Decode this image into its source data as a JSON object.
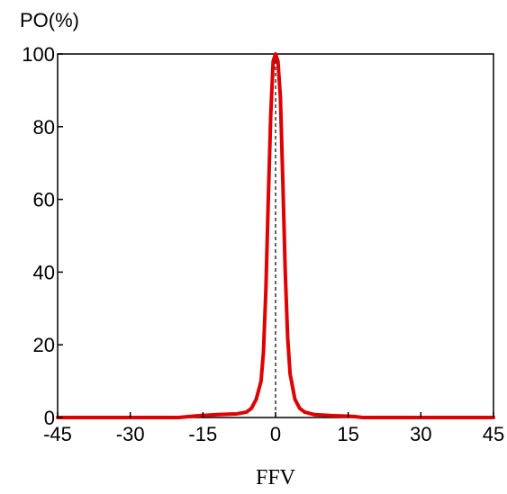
{
  "chart_data": {
    "type": "line",
    "title": "",
    "xlabel": "FFV",
    "ylabel": "PO(%)",
    "xlim": [
      -45,
      45
    ],
    "ylim": [
      0,
      100
    ],
    "xticks": [
      -45,
      -30,
      -15,
      0,
      15,
      30,
      45
    ],
    "yticks": [
      0,
      20,
      40,
      60,
      80,
      100
    ],
    "xtick_labels": [
      "-45",
      "-30",
      "-15",
      "0",
      "15",
      "30",
      "45"
    ],
    "ytick_labels": [
      "0",
      "20",
      "40",
      "60",
      "80",
      "100"
    ],
    "grid": false,
    "legend": "none",
    "colors": {
      "series": "#e00000",
      "reference": "#000000"
    },
    "reference_line": {
      "x": 0,
      "style": "dashed"
    },
    "series": [
      {
        "x": [
          -45,
          -30,
          -20,
          -16,
          -12,
          -8,
          -6,
          -5,
          -4,
          -3,
          -2.5,
          -2,
          -1.5,
          -1,
          -0.5,
          0,
          0.5,
          1,
          1.5,
          2,
          2.5,
          3,
          4,
          5,
          6,
          8,
          12,
          16,
          18,
          20,
          30,
          45
        ],
        "values": [
          0,
          0,
          0,
          0.5,
          0.8,
          1,
          1.5,
          2.5,
          5,
          10,
          18,
          35,
          60,
          83,
          98,
          100,
          98,
          88,
          65,
          40,
          22,
          12,
          5,
          2.5,
          1.5,
          0.8,
          0.5,
          0.3,
          0,
          0,
          0,
          0
        ]
      }
    ]
  }
}
